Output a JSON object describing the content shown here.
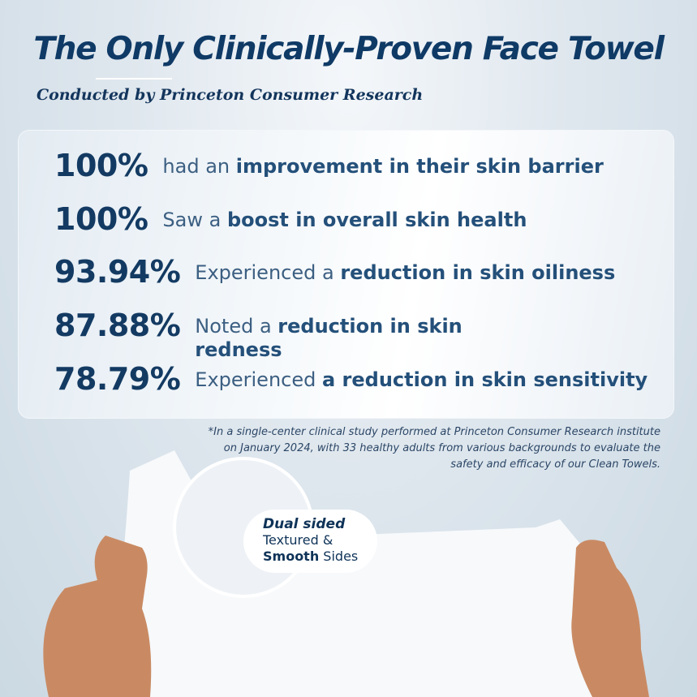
{
  "header": {
    "title": "The Only Clinically-Proven Face Towel",
    "subtitle": "Conducted by Princeton Consumer Research"
  },
  "stats": [
    {
      "value": "100%",
      "pre": "had an ",
      "bold": "improvement in their skin barrier",
      "post": ""
    },
    {
      "value": "100%",
      "pre": "Saw a ",
      "bold": "boost in overall skin health",
      "post": ""
    },
    {
      "value": "93.94%",
      "pre": "Experienced a ",
      "bold": "reduction in skin oiliness",
      "post": ""
    },
    {
      "value": "87.88%",
      "pre": "Noted a ",
      "bold": "reduction in skin redness",
      "post": ""
    },
    {
      "value": "78.79%",
      "pre": "Experienced ",
      "bold": "a reduction in skin sensitivity",
      "post": ""
    }
  ],
  "footnote": "*In a single-center clinical study performed at Princeton Consumer Research institute on January 2024, with 33 healthy adults from various backgrounds to evaluate the safety and efficacy of our Clean Towels.",
  "badge": {
    "title": "Dual sided",
    "line1": "Textured &",
    "line2_bold": "Smooth",
    "line2": " Sides"
  },
  "colors": {
    "primary": "#0f3a66",
    "text": "#3c5f82",
    "background": "#cbd9e3"
  }
}
